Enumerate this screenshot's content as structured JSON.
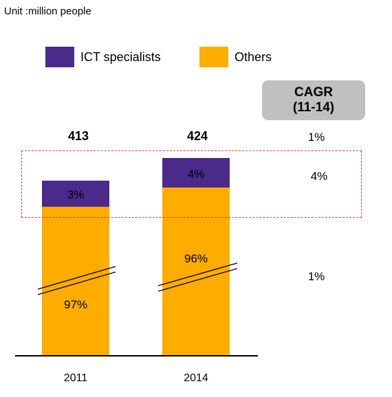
{
  "unit_label": "Unit :million people",
  "legend": [
    {
      "label": "ICT specialists",
      "color": "#4b2a8c"
    },
    {
      "label": "Others",
      "color": "#ffac00"
    }
  ],
  "cagr": {
    "title": "CAGR",
    "period": "(11-14)",
    "total": "1%",
    "ict": "4%",
    "others": "1%"
  },
  "chart_data": {
    "type": "bar",
    "stacked": true,
    "axis_break": true,
    "unit": "million people",
    "categories": [
      "2011",
      "2014"
    ],
    "totals": [
      413,
      424
    ],
    "series": [
      {
        "name": "Others",
        "color": "#ffac00",
        "share_labels": [
          "97%",
          "96%"
        ],
        "shares": [
          0.97,
          0.96
        ]
      },
      {
        "name": "ICT specialists",
        "color": "#4b2a8c",
        "share_labels": [
          "3%",
          "4%"
        ],
        "shares": [
          0.03,
          0.04
        ]
      }
    ],
    "total_labels": [
      "413",
      "424"
    ],
    "xlabel": "",
    "ylabel": ""
  }
}
